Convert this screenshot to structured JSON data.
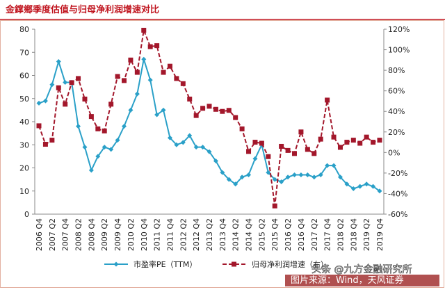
{
  "chart_data": {
    "type": "line",
    "title": "金鐣鄉季度估值与归母净利润增速对比",
    "source": "图片来源：Wind，天风证券",
    "watermark": "头条 @九方金融研究所",
    "categories": [
      "2006 Q4",
      null,
      "2007 Q2",
      null,
      "2007 Q4",
      null,
      "2008 Q2",
      null,
      "2008 Q4",
      null,
      "2009 Q2",
      null,
      "2009 Q4",
      null,
      "2010 Q2",
      null,
      "2010 Q4",
      null,
      "2011 Q2",
      null,
      "2011 Q4",
      null,
      "2012 Q2",
      null,
      "2012 Q4",
      null,
      "2013 Q2",
      null,
      "2013 Q4",
      null,
      "2014 Q2",
      null,
      "2014 Q4",
      null,
      "2015 Q2",
      null,
      "2015 Q4",
      null,
      "2016 Q2",
      null,
      "2016 Q4",
      null,
      "2017 Q2",
      null,
      "2017 Q4",
      null,
      "2018 Q2",
      null,
      "2018 Q4",
      null,
      "2019 Q2",
      null,
      "2019 Q4"
    ],
    "ylim": [
      0,
      80
    ],
    "yticks": [
      0,
      10,
      20,
      30,
      40,
      50,
      60,
      70,
      80
    ],
    "y2lim": [
      -60,
      120
    ],
    "y2ticks": [
      {
        "value": -60,
        "label": "-60%"
      },
      {
        "value": -40,
        "label": "-40%"
      },
      {
        "value": -20,
        "label": "-20%"
      },
      {
        "value": 0,
        "label": "0%"
      },
      {
        "value": 20,
        "label": "20%"
      },
      {
        "value": 40,
        "label": "40%"
      },
      {
        "value": 60,
        "label": "60%"
      },
      {
        "value": 80,
        "label": "80%"
      },
      {
        "value": 100,
        "label": "100%"
      },
      {
        "value": 120,
        "label": "120%"
      }
    ],
    "series": [
      {
        "name": "市盈率PE（TTM）",
        "color": "#2aa0c8",
        "values": [
          48,
          49,
          56,
          66,
          57,
          57,
          38,
          29,
          19,
          25,
          29,
          28,
          32,
          38,
          45,
          52,
          67,
          58,
          43,
          45,
          33,
          30,
          31,
          34,
          29,
          29,
          27,
          23,
          18,
          15,
          13,
          16,
          17,
          24,
          30,
          18,
          15,
          14,
          16,
          17,
          17,
          17,
          16,
          17,
          21,
          21,
          16,
          13,
          11,
          12,
          13,
          12,
          10
        ]
      },
      {
        "name": "归母净利润增速（右）",
        "color": "#a3172b",
        "axis": "y2",
        "values": [
          26,
          8,
          12,
          63,
          47,
          68,
          72,
          52,
          35,
          23,
          21,
          47,
          74,
          70,
          90,
          78,
          119,
          103,
          104,
          78,
          84,
          72,
          67,
          52,
          36,
          43,
          45,
          42,
          40,
          41,
          34,
          23,
          1,
          10,
          9,
          -4,
          -52,
          6,
          2,
          -1,
          20,
          3,
          -1,
          13,
          51,
          15,
          5,
          10,
          12,
          9,
          15,
          10,
          12
        ]
      }
    ]
  }
}
